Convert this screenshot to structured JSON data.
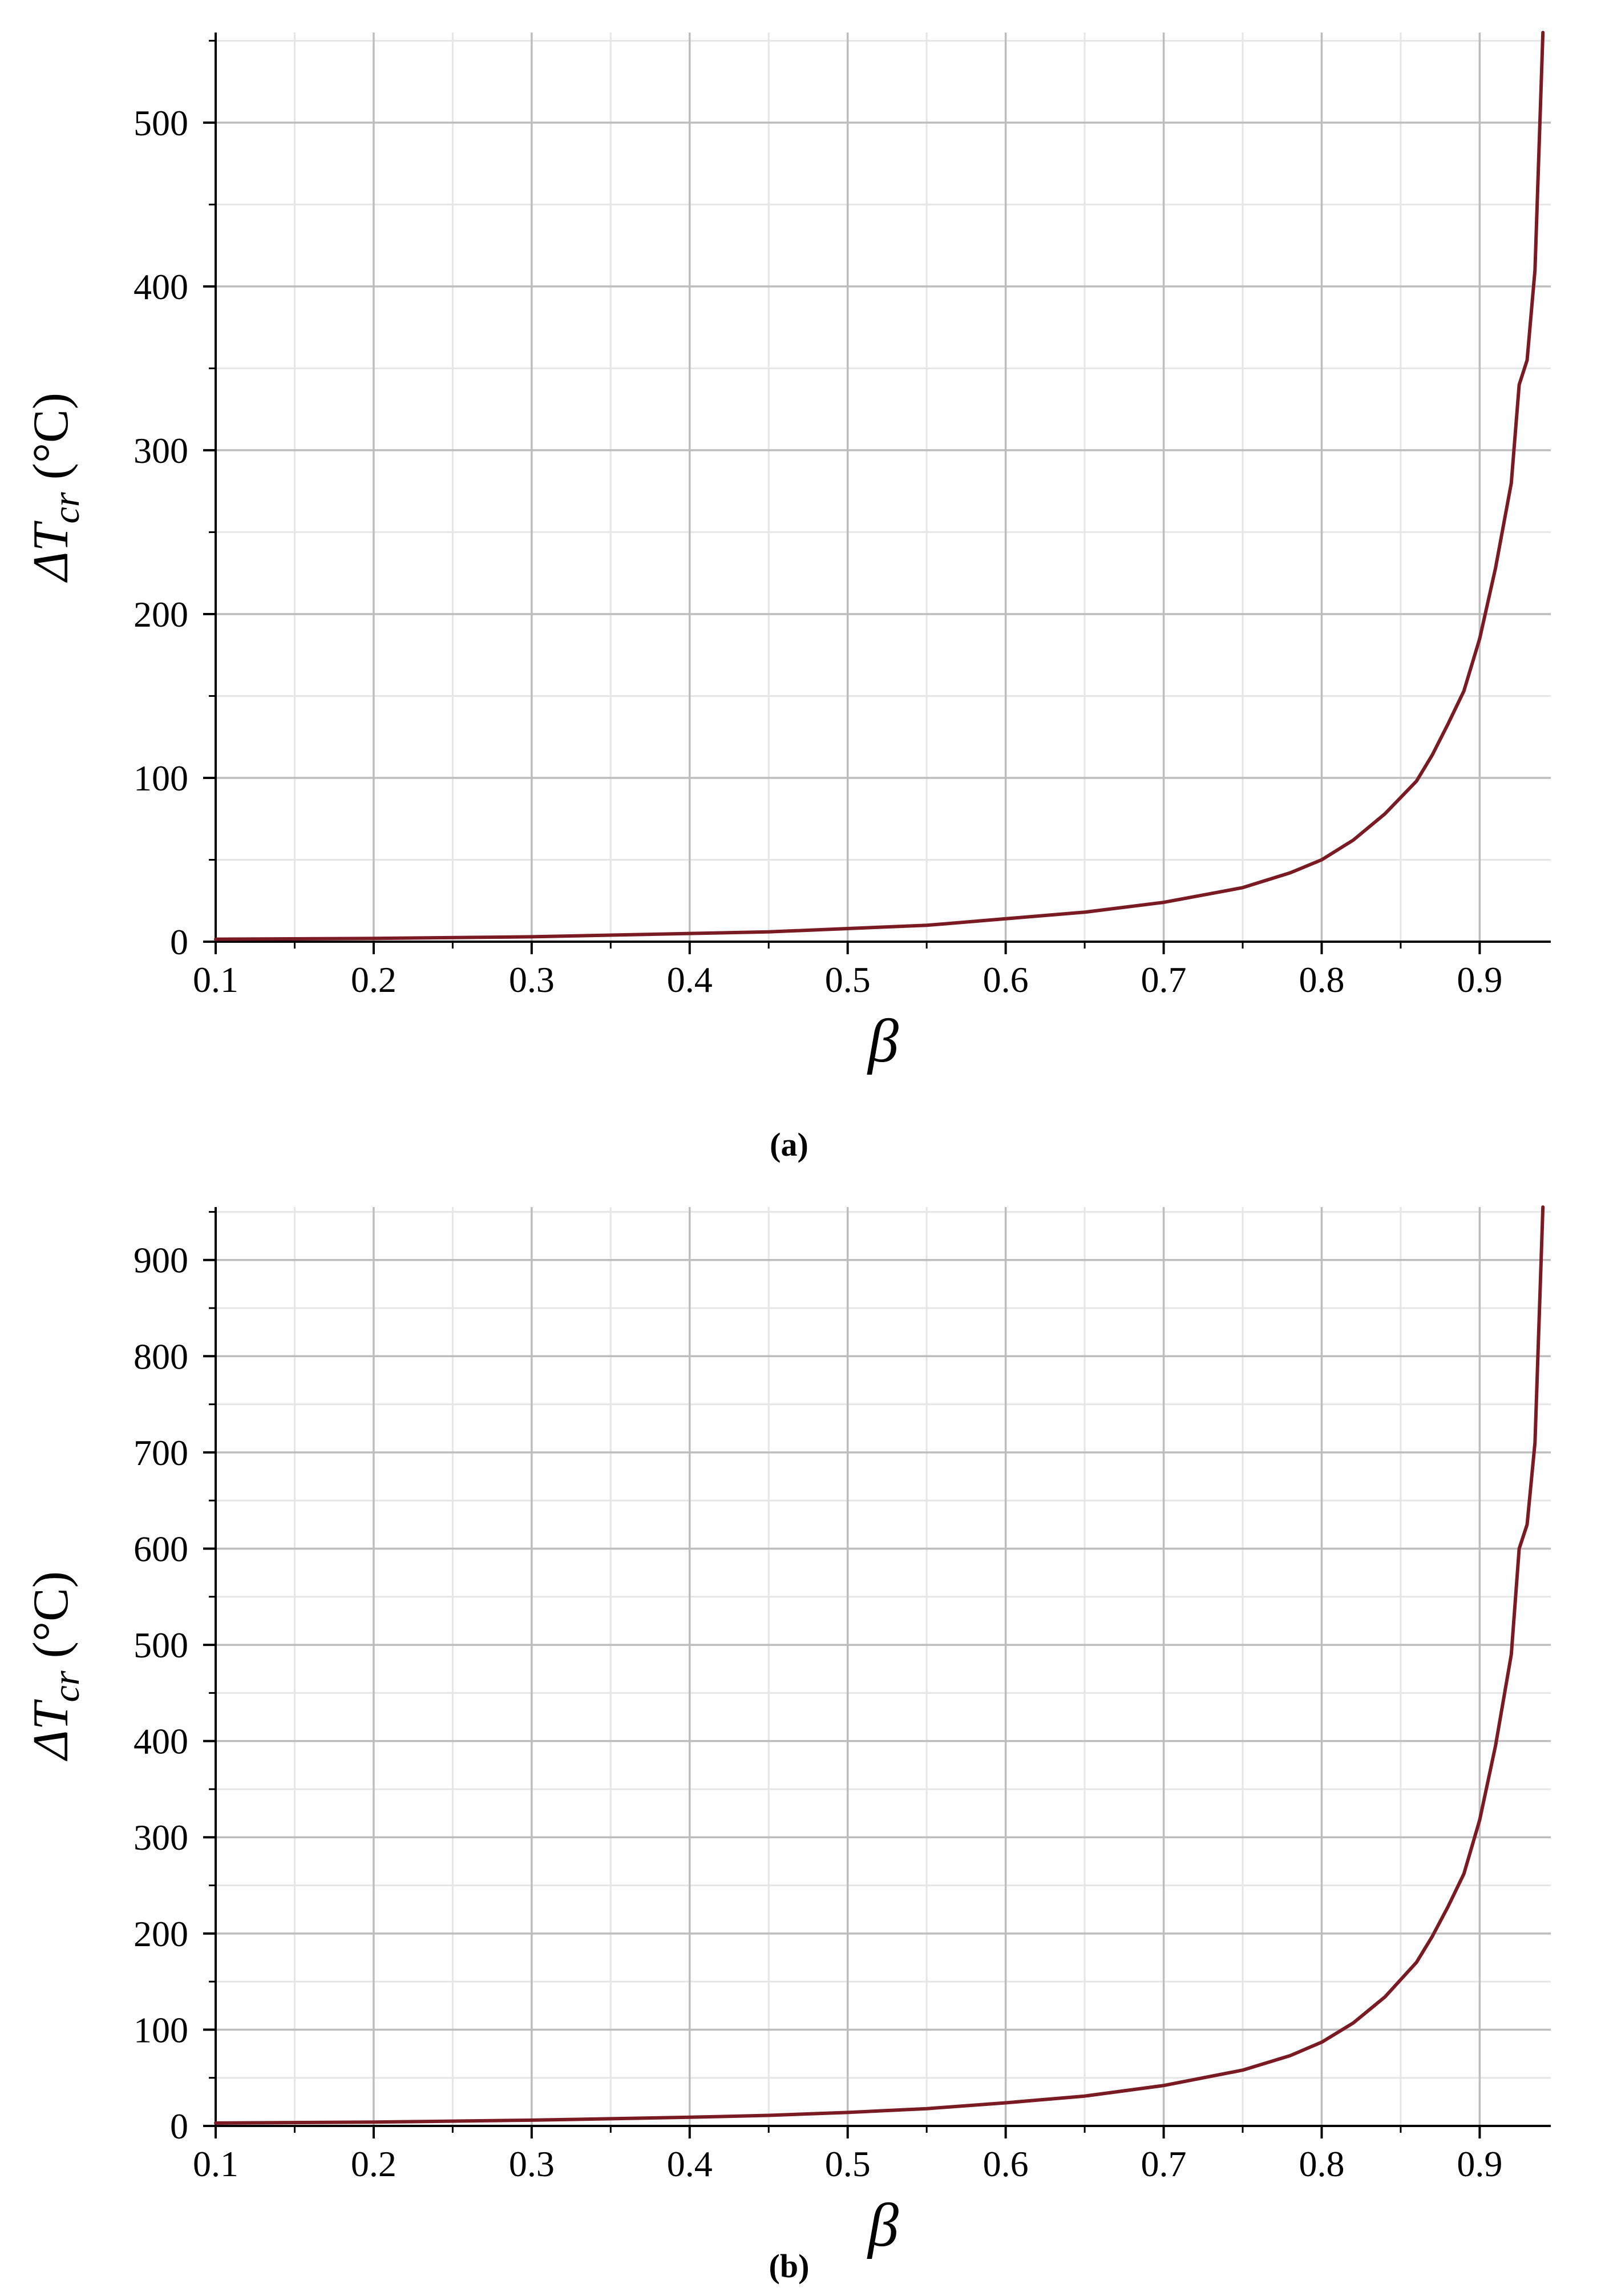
{
  "chart_data": [
    {
      "type": "line",
      "panel_label": "(a)",
      "xlabel": "β",
      "ylabel": {
        "prefix": "ΔT",
        "subscript": "cr",
        "unit": " (°C)"
      },
      "xlim": [
        0.1,
        0.945
      ],
      "ylim": [
        0,
        555
      ],
      "x_ticks": [
        0.1,
        0.2,
        0.3,
        0.4,
        0.5,
        0.6,
        0.7,
        0.8,
        0.9
      ],
      "x_tick_labels": [
        "0.1",
        "0.2",
        "0.3",
        "0.4",
        "0.5",
        "0.6",
        "0.7",
        "0.8",
        "0.9"
      ],
      "y_ticks": [
        0,
        100,
        200,
        300,
        400,
        500
      ],
      "y_tick_labels": [
        "0",
        "100",
        "200",
        "300",
        "400",
        "500"
      ],
      "grid": true,
      "line_color": "#7a1a22",
      "series": [
        {
          "x": [
            0.1,
            0.2,
            0.3,
            0.4,
            0.45,
            0.5,
            0.55,
            0.6,
            0.65,
            0.7,
            0.75,
            0.78,
            0.8,
            0.82,
            0.84,
            0.86,
            0.87,
            0.88,
            0.89,
            0.9,
            0.91,
            0.92,
            0.925,
            0.93,
            0.935,
            0.94
          ],
          "y": [
            1.5,
            2,
            3,
            5,
            6,
            8,
            10,
            14,
            18,
            24,
            33,
            42,
            50,
            62,
            78,
            98,
            114,
            133,
            153,
            185,
            228,
            280,
            340,
            355,
            410,
            555
          ]
        }
      ]
    },
    {
      "type": "line",
      "panel_label": "(b)",
      "xlabel": "β",
      "ylabel": {
        "prefix": "ΔT",
        "subscript": "cr",
        "unit": " (°C)"
      },
      "xlim": [
        0.1,
        0.945
      ],
      "ylim": [
        0,
        955
      ],
      "x_ticks": [
        0.1,
        0.2,
        0.3,
        0.4,
        0.5,
        0.6,
        0.7,
        0.8,
        0.9
      ],
      "x_tick_labels": [
        "0.1",
        "0.2",
        "0.3",
        "0.4",
        "0.5",
        "0.6",
        "0.7",
        "0.8",
        "0.9"
      ],
      "y_ticks": [
        0,
        100,
        200,
        300,
        400,
        500,
        600,
        700,
        800,
        900
      ],
      "y_tick_labels": [
        "0",
        "100",
        "200",
        "300",
        "400",
        "500",
        "600",
        "700",
        "800",
        "900"
      ],
      "grid": true,
      "line_color": "#7a1a22",
      "series": [
        {
          "x": [
            0.1,
            0.2,
            0.3,
            0.4,
            0.45,
            0.5,
            0.55,
            0.6,
            0.65,
            0.7,
            0.75,
            0.78,
            0.8,
            0.82,
            0.84,
            0.86,
            0.87,
            0.88,
            0.89,
            0.9,
            0.91,
            0.92,
            0.925,
            0.93,
            0.935,
            0.94
          ],
          "y": [
            3,
            4,
            6,
            9,
            11,
            14,
            18,
            24,
            31,
            42,
            58,
            73,
            87,
            107,
            134,
            170,
            197,
            228,
            262,
            318,
            395,
            490,
            600,
            625,
            710,
            955
          ]
        }
      ]
    }
  ]
}
